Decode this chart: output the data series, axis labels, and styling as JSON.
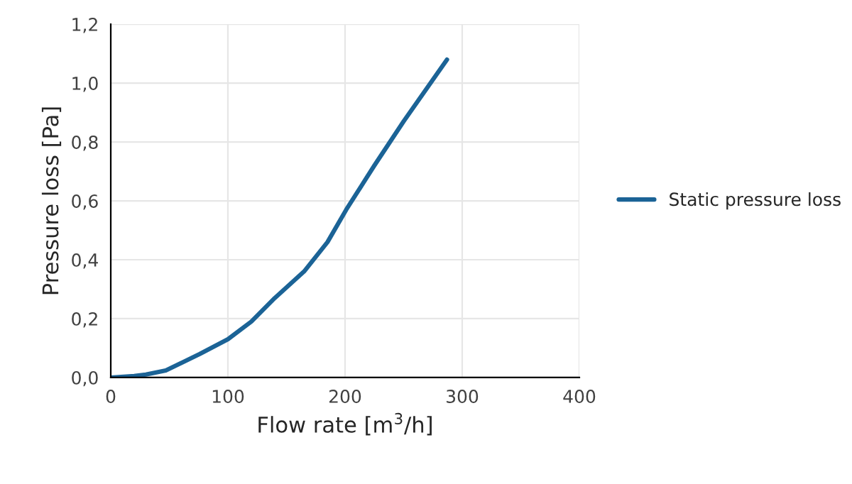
{
  "chart_data": {
    "type": "line",
    "xlabel": "Flow rate [m$^{3}$/h]",
    "ylabel": "Pressure loss [Pa]",
    "series": [
      {
        "name": "Static pressure loss",
        "color": "#1b6396",
        "x": [
          0,
          20,
          30,
          47,
          76,
          100,
          120,
          140,
          165,
          185,
          201,
          225,
          250,
          287
        ],
        "values": [
          0,
          0.005,
          0.01,
          0.024,
          0.08,
          0.13,
          0.19,
          0.27,
          0.36,
          0.46,
          0.57,
          0.72,
          0.87,
          1.08
        ]
      }
    ],
    "xlim": [
      0,
      400
    ],
    "xticks": [
      0,
      100,
      200,
      300,
      400
    ],
    "ylim": [
      0,
      1.2
    ],
    "yticks": [
      {
        "value": 0,
        "label": "0,0"
      },
      {
        "value": 0.2,
        "label": "0,2"
      },
      {
        "value": 0.4,
        "label": "0,4"
      },
      {
        "value": 0.6,
        "label": "0,6"
      },
      {
        "value": 0.8,
        "label": "0,8"
      },
      {
        "value": 1.0,
        "label": "1,0"
      },
      {
        "value": 1.2,
        "label": "1,2"
      }
    ],
    "grid": true,
    "legend": "right",
    "marker": "none",
    "line_style": "solid"
  }
}
